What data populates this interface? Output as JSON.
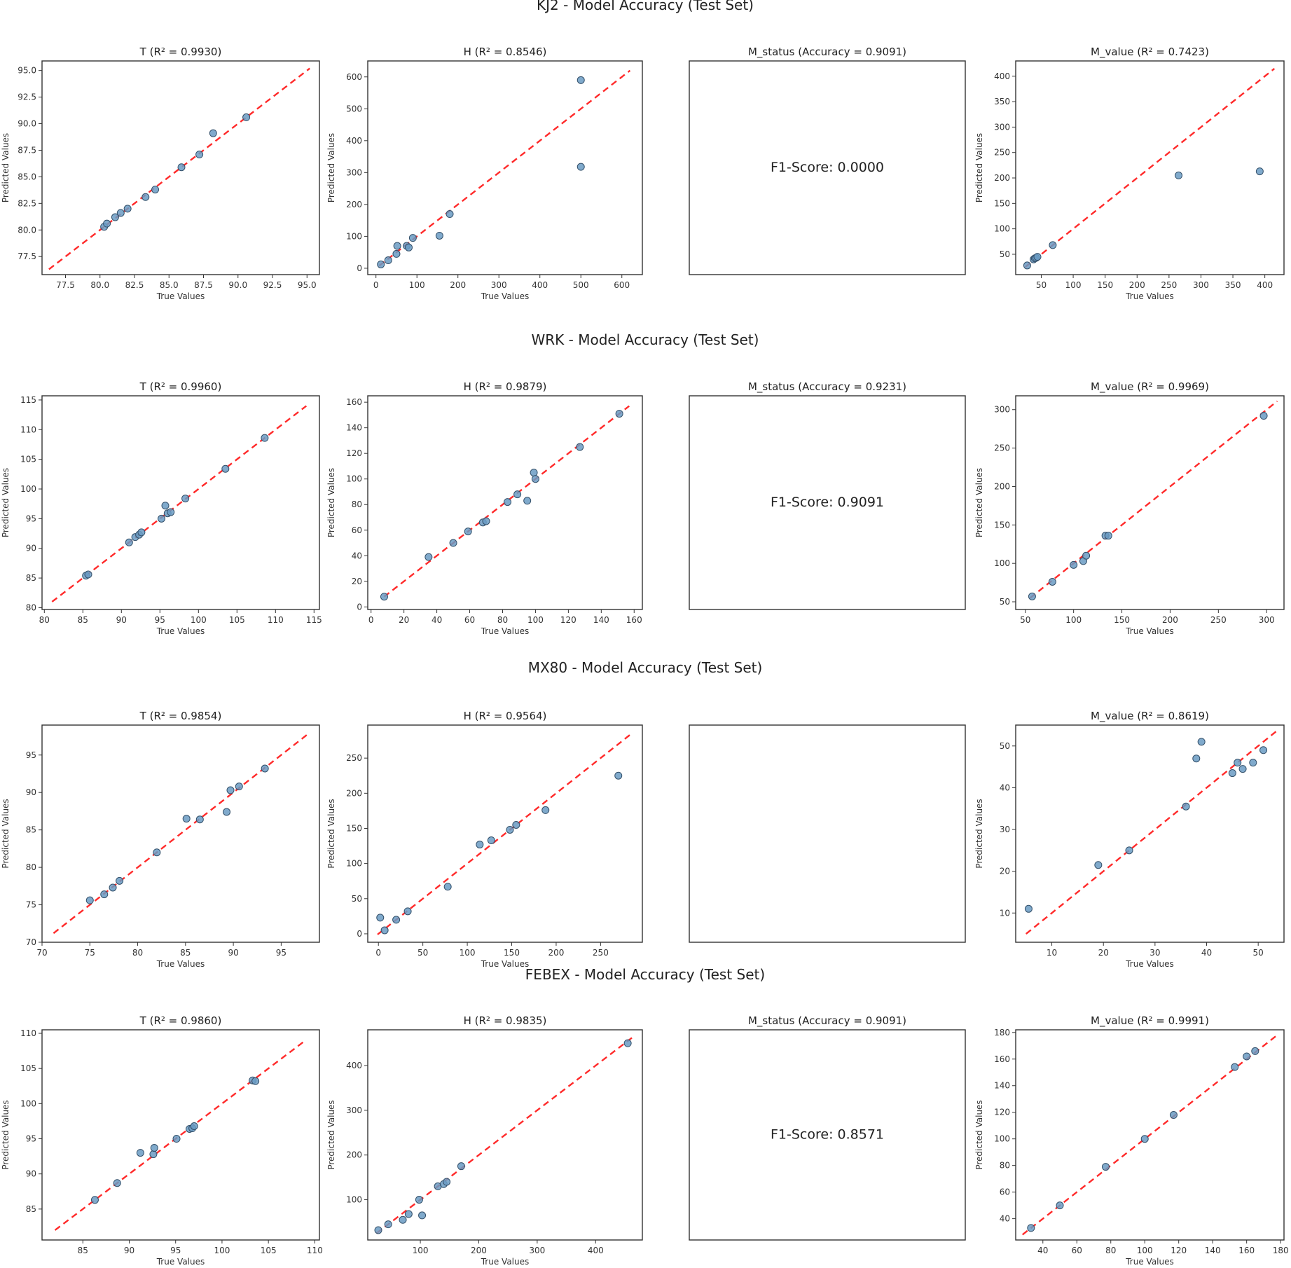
{
  "colors": {
    "point": "#6a9bc3",
    "point_edge": "#34506a",
    "ideal_line": "#ff2a2a",
    "axes": "#333333"
  },
  "axis_labels": {
    "x": "True Values",
    "y": "Predicted Values"
  },
  "chart_data": [
    {
      "title": "KJ2 - Model Accuracy (Test Set)",
      "panels": [
        {
          "type": "scatter",
          "title": "T (R² = 0.9930)",
          "xlabel": "True Values",
          "ylabel": "Predicted Values",
          "xlim": [
            75.8,
            95.9
          ],
          "ylim": [
            75.8,
            95.9
          ],
          "xticks": [
            "77.5",
            "80.0",
            "82.5",
            "85.0",
            "87.5",
            "90.0",
            "92.5",
            "95.0"
          ],
          "yticks": [
            "77.5",
            "80.0",
            "82.5",
            "85.0",
            "87.5",
            "90.0",
            "92.5",
            "95.0"
          ],
          "line": [
            76.3,
            95.2
          ],
          "x": [
            80.3,
            80.5,
            81.1,
            81.5,
            82.0,
            83.3,
            84.0,
            85.9,
            87.2,
            88.2,
            90.6
          ],
          "y": [
            80.3,
            80.6,
            81.2,
            81.6,
            82.0,
            83.1,
            83.8,
            85.9,
            87.1,
            89.1,
            90.6
          ]
        },
        {
          "type": "scatter",
          "title": "H (R² = 0.8546)",
          "xlabel": "True Values",
          "ylabel": "Predicted Values",
          "xlim": [
            -20,
            650
          ],
          "ylim": [
            -20,
            650
          ],
          "xticks": [
            "0",
            "100",
            "200",
            "300",
            "400",
            "500",
            "600"
          ],
          "yticks": [
            "0",
            "100",
            "200",
            "300",
            "400",
            "500",
            "600"
          ],
          "line": [
            8,
            620
          ],
          "x": [
            12,
            30,
            50,
            52,
            75,
            80,
            90,
            155,
            180,
            500,
            500
          ],
          "y": [
            12,
            25,
            45,
            70,
            70,
            65,
            95,
            102,
            170,
            590,
            318
          ]
        },
        {
          "type": "text",
          "title": "M_status (Accuracy = 0.9091)",
          "text": "F1-Score: 0.0000"
        },
        {
          "type": "scatter",
          "title": "M_value (R² = 0.7423)",
          "xlabel": "True Values",
          "ylabel": "Predicted Values",
          "xlim": [
            10,
            430
          ],
          "ylim": [
            10,
            430
          ],
          "xticks": [
            "50",
            "100",
            "150",
            "200",
            "250",
            "300",
            "350",
            "400"
          ],
          "yticks": [
            "50",
            "100",
            "150",
            "200",
            "250",
            "300",
            "350",
            "400"
          ],
          "line": [
            25,
            415
          ],
          "x": [
            28,
            38,
            40,
            42,
            44,
            68,
            265,
            392
          ],
          "y": [
            28,
            40,
            42,
            43,
            45,
            68,
            205,
            213
          ]
        }
      ]
    },
    {
      "title": "WRK - Model Accuracy (Test Set)",
      "panels": [
        {
          "type": "scatter",
          "title": "T (R² = 0.9960)",
          "xlabel": "True Values",
          "ylabel": "Predicted Values",
          "xlim": [
            79.7,
            115.7
          ],
          "ylim": [
            79.7,
            115.7
          ],
          "xticks": [
            "80",
            "85",
            "90",
            "95",
            "100",
            "105",
            "110",
            "115"
          ],
          "yticks": [
            "80",
            "85",
            "90",
            "95",
            "100",
            "105",
            "110",
            "115"
          ],
          "line": [
            81,
            114
          ],
          "x": [
            85.4,
            85.7,
            91.0,
            91.8,
            92.3,
            92.6,
            95.2,
            95.7,
            96.0,
            96.4,
            98.3,
            103.5,
            108.6
          ],
          "y": [
            85.4,
            85.6,
            91.0,
            91.9,
            92.3,
            92.7,
            95.0,
            97.2,
            95.9,
            96.1,
            98.4,
            103.4,
            108.6
          ]
        },
        {
          "type": "scatter",
          "title": "H (R² = 0.9879)",
          "xlabel": "True Values",
          "ylabel": "Predicted Values",
          "xlim": [
            -2,
            165
          ],
          "ylim": [
            -2,
            165
          ],
          "xticks": [
            "0",
            "20",
            "40",
            "60",
            "80",
            "100",
            "120",
            "140",
            "160"
          ],
          "yticks": [
            "0",
            "20",
            "40",
            "60",
            "80",
            "100",
            "120",
            "140",
            "160"
          ],
          "line": [
            8,
            157
          ],
          "x": [
            8,
            35,
            50,
            59,
            68,
            70,
            83,
            89,
            95,
            99,
            100,
            127,
            151
          ],
          "y": [
            8,
            39,
            50,
            59,
            66,
            67,
            82,
            88,
            83,
            105,
            100,
            125,
            151
          ]
        },
        {
          "type": "text",
          "title": "M_status (Accuracy = 0.9231)",
          "text": "F1-Score: 0.9091"
        },
        {
          "type": "scatter",
          "title": "M_value (R² = 0.9969)",
          "xlabel": "True Values",
          "ylabel": "Predicted Values",
          "xlim": [
            40,
            318
          ],
          "ylim": [
            40,
            318
          ],
          "xticks": [
            "50",
            "100",
            "150",
            "200",
            "250",
            "300"
          ],
          "yticks": [
            "50",
            "100",
            "150",
            "200",
            "250",
            "300"
          ],
          "line": [
            55,
            311
          ],
          "x": [
            57,
            78,
            100,
            110,
            113,
            133,
            136,
            297
          ],
          "y": [
            57,
            76,
            98,
            103,
            110,
            136,
            136,
            292
          ]
        }
      ]
    },
    {
      "title": "MX80 - Model Accuracy (Test Set)",
      "panels": [
        {
          "type": "scatter",
          "title": "T (R² = 0.9854)",
          "xlabel": "True Values",
          "ylabel": "Predicted Values",
          "xlim": [
            70,
            99
          ],
          "ylim": [
            70,
            99
          ],
          "xticks": [
            "70",
            "75",
            "80",
            "85",
            "90",
            "95"
          ],
          "yticks": [
            "70",
            "75",
            "80",
            "85",
            "90",
            "95"
          ],
          "line": [
            71.2,
            98
          ],
          "x": [
            75.0,
            76.5,
            77.4,
            78.1,
            82.0,
            85.1,
            86.5,
            89.3,
            89.7,
            90.6,
            93.3
          ],
          "y": [
            75.6,
            76.4,
            77.3,
            78.2,
            82.0,
            86.5,
            86.4,
            87.4,
            90.3,
            90.8,
            93.2
          ]
        },
        {
          "type": "scatter",
          "title": "H (R² = 0.9564)",
          "xlabel": "True Values",
          "ylabel": "Predicted Values",
          "xlim": [
            -12,
            297
          ],
          "ylim": [
            -12,
            297
          ],
          "xticks": [
            "0",
            "50",
            "100",
            "150",
            "200",
            "250"
          ],
          "yticks": [
            "0",
            "50",
            "100",
            "150",
            "200",
            "250"
          ],
          "line": [
            -1,
            283
          ],
          "x": [
            2,
            7,
            20,
            33,
            78,
            114,
            127,
            148,
            155,
            188,
            270
          ],
          "y": [
            23,
            5,
            20,
            32,
            67,
            127,
            133,
            148,
            155,
            176,
            225
          ]
        },
        {
          "type": "text",
          "title": "",
          "text": ""
        },
        {
          "type": "scatter",
          "title": "M_value (R² = 0.8619)",
          "xlabel": "True Values",
          "ylabel": "Predicted Values",
          "xlim": [
            3,
            55
          ],
          "ylim": [
            3,
            55
          ],
          "xticks": [
            "10",
            "20",
            "30",
            "40",
            "50"
          ],
          "yticks": [
            "10",
            "20",
            "30",
            "40",
            "50"
          ],
          "line": [
            5,
            54
          ],
          "x": [
            5.5,
            19.0,
            25.0,
            36.0,
            38.0,
            39.0,
            45.0,
            46.0,
            47.0,
            49.0,
            51.0
          ],
          "y": [
            11.0,
            21.5,
            25.0,
            35.5,
            47.0,
            51.0,
            43.5,
            46.0,
            44.5,
            46.0,
            49.0
          ]
        }
      ]
    },
    {
      "title": "FEBEX - Model Accuracy (Test Set)",
      "panels": [
        {
          "type": "scatter",
          "title": "T (R² = 0.9860)",
          "xlabel": "True Values",
          "ylabel": "Predicted Values",
          "xlim": [
            80.6,
            110.5
          ],
          "ylim": [
            80.6,
            110.5
          ],
          "xticks": [
            "85",
            "90",
            "95",
            "100",
            "105",
            "110"
          ],
          "yticks": [
            "85",
            "90",
            "95",
            "100",
            "105",
            "110"
          ],
          "line": [
            82,
            108.8
          ],
          "x": [
            86.3,
            88.7,
            91.2,
            92.6,
            92.7,
            95.1,
            96.5,
            96.8,
            97.0,
            103.3,
            103.6
          ],
          "y": [
            86.3,
            88.7,
            93.0,
            92.8,
            93.7,
            95.0,
            96.4,
            96.5,
            96.8,
            103.3,
            103.2
          ]
        },
        {
          "type": "scatter",
          "title": "H (R² = 0.9835)",
          "xlabel": "True Values",
          "ylabel": "Predicted Values",
          "xlim": [
            10,
            480
          ],
          "ylim": [
            10,
            480
          ],
          "xticks": [
            "100",
            "200",
            "300",
            "400"
          ],
          "yticks": [
            "100",
            "200",
            "300",
            "400"
          ],
          "line": [
            25,
            465
          ],
          "x": [
            28,
            45,
            70,
            80,
            98,
            103,
            130,
            140,
            145,
            170,
            455
          ],
          "y": [
            32,
            45,
            55,
            68,
            100,
            65,
            130,
            135,
            140,
            175,
            450
          ]
        },
        {
          "type": "text",
          "title": "M_status (Accuracy = 0.9091)",
          "text": "F1-Score: 0.8571"
        },
        {
          "type": "scatter",
          "title": "M_value (R² = 0.9991)",
          "xlabel": "True Values",
          "ylabel": "Predicted Values",
          "xlim": [
            24,
            182
          ],
          "ylim": [
            24,
            182
          ],
          "xticks": [
            "40",
            "60",
            "80",
            "100",
            "120",
            "140",
            "160",
            "180"
          ],
          "yticks": [
            "40",
            "60",
            "80",
            "100",
            "120",
            "140",
            "160",
            "180"
          ],
          "line": [
            28,
            178
          ],
          "x": [
            33,
            50,
            77,
            100,
            117,
            153,
            160,
            165
          ],
          "y": [
            33,
            50,
            79,
            100,
            118,
            154,
            162,
            166
          ]
        }
      ]
    }
  ]
}
